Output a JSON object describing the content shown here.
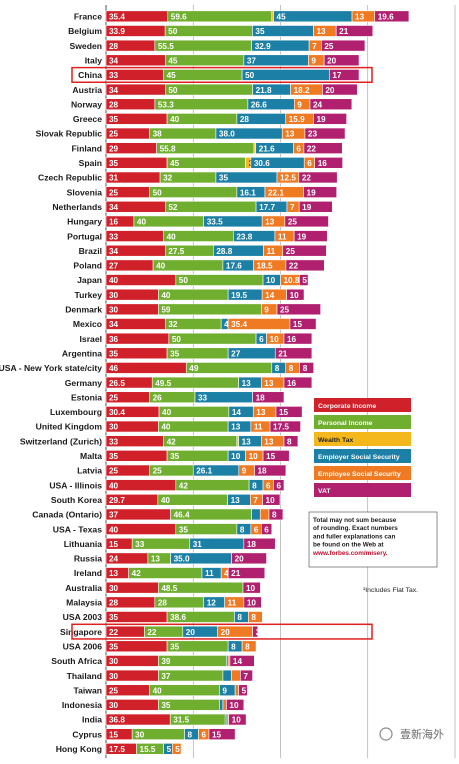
{
  "chart_data": {
    "type": "bar",
    "stacked": true,
    "orientation": "horizontal",
    "xlim": [
      0,
      200
    ],
    "xticks": [
      "0",
      "50",
      "100",
      "150",
      "200"
    ],
    "grid": true,
    "legend_position": "right",
    "highlighted_rows": [
      "China",
      "Singapore"
    ],
    "series": [
      {
        "name": "Corporate Income",
        "color": "#d0202a"
      },
      {
        "name": "Personal Income",
        "color": "#6fae2e"
      },
      {
        "name": "Wealth Tax",
        "color": "#f4b81c"
      },
      {
        "name": "Employer Social Security",
        "color": "#1c7fa6"
      },
      {
        "name": "Employee Social Security",
        "color": "#ef7a22"
      },
      {
        "name": "VAT",
        "color": "#b1206f"
      }
    ],
    "rows": [
      {
        "label": "France",
        "values": [
          35.4,
          59.6,
          1.0,
          45,
          13,
          19.6
        ],
        "labels": [
          "35.4",
          "59.6",
          "",
          "45",
          "13",
          "19.6"
        ]
      },
      {
        "label": "Belgium",
        "values": [
          33.9,
          50,
          0,
          35,
          13,
          21
        ],
        "labels": [
          "33.9",
          "50",
          "",
          "35",
          "13",
          "21"
        ]
      },
      {
        "label": "Sweden",
        "values": [
          28,
          55.5,
          0,
          32.9,
          7,
          25
        ],
        "labels": [
          "28",
          "55.5",
          "",
          "32.9",
          "7",
          "25"
        ]
      },
      {
        "label": "Italy",
        "values": [
          34,
          45,
          0,
          37,
          9,
          20
        ],
        "labels": [
          "34",
          "45",
          "",
          "37",
          "9",
          "20"
        ]
      },
      {
        "label": "China",
        "values": [
          33,
          45,
          0,
          50,
          0,
          17
        ],
        "labels": [
          "33",
          "45",
          "",
          "50",
          "",
          "17"
        ]
      },
      {
        "label": "Austria",
        "values": [
          34,
          50,
          0,
          21.8,
          18.2,
          20
        ],
        "labels": [
          "34",
          "50",
          "",
          "21.8",
          "18.2",
          "20"
        ]
      },
      {
        "label": "Norway",
        "values": [
          28,
          53.3,
          0,
          26.6,
          9,
          24
        ],
        "labels": [
          "28",
          "53.3",
          "",
          "26.6",
          "9",
          "24"
        ]
      },
      {
        "label": "Greece",
        "values": [
          35,
          40,
          0,
          28,
          15.9,
          19
        ],
        "labels": [
          "35",
          "40",
          "",
          "28",
          "15.9",
          "19"
        ]
      },
      {
        "label": "Slovak Republic",
        "values": [
          25,
          38,
          0,
          38,
          13,
          23
        ],
        "labels": [
          "25",
          "38",
          "",
          "38.0",
          "13",
          "23"
        ]
      },
      {
        "label": "Finland",
        "values": [
          29,
          55.8,
          1,
          21.6,
          6,
          22
        ],
        "labels": [
          "29",
          "55.8",
          "1",
          "21.6",
          "6",
          "22"
        ]
      },
      {
        "label": "Spain",
        "values": [
          35,
          45,
          3,
          30.6,
          6,
          16
        ],
        "labels": [
          "35",
          "45",
          "3",
          "30.6",
          "6",
          "16"
        ]
      },
      {
        "label": "Czech Republic",
        "values": [
          31,
          32,
          0,
          35,
          12.5,
          22
        ],
        "labels": [
          "31",
          "32",
          "",
          "35",
          "12.5",
          "22"
        ]
      },
      {
        "label": "Slovenia",
        "values": [
          25,
          50,
          0,
          16.1,
          22.1,
          19
        ],
        "labels": [
          "25",
          "50",
          "",
          "16.1",
          "22.1",
          "19"
        ]
      },
      {
        "label": "Netherlands",
        "values": [
          34,
          52,
          0,
          17.7,
          7,
          19
        ],
        "labels": [
          "34",
          "52",
          "",
          "17.7",
          "7",
          "19"
        ]
      },
      {
        "label": "Hungary",
        "values": [
          16,
          40,
          0,
          33.5,
          13,
          25
        ],
        "labels": [
          "16",
          "40",
          "",
          "33.5",
          "13",
          "25"
        ]
      },
      {
        "label": "Portugal",
        "values": [
          33,
          40,
          0,
          23.8,
          11,
          19
        ],
        "labels": [
          "33",
          "40",
          "",
          "23.8",
          "11",
          "19"
        ]
      },
      {
        "label": "Brazil",
        "values": [
          34,
          27.5,
          0,
          28.8,
          11,
          25
        ],
        "labels": [
          "34",
          "27.5",
          "",
          "28.8",
          "11",
          "25"
        ]
      },
      {
        "label": "Poland",
        "values": [
          27,
          40,
          0,
          17.6,
          18.5,
          22
        ],
        "labels": [
          "27",
          "40",
          "",
          "17.6",
          "18.5",
          "22"
        ]
      },
      {
        "label": "Japan",
        "values": [
          40,
          50,
          0,
          10,
          10.8,
          5
        ],
        "labels": [
          "40",
          "50",
          "",
          "10",
          "10.8",
          "5"
        ]
      },
      {
        "label": "Turkey",
        "values": [
          30,
          40,
          0,
          19.5,
          14,
          10
        ],
        "labels": [
          "30",
          "40",
          "",
          "19.5",
          "14",
          "10"
        ]
      },
      {
        "label": "Denmark",
        "values": [
          30,
          59,
          0,
          0,
          9,
          25
        ],
        "labels": [
          "30",
          "59",
          "",
          "",
          "9",
          "25"
        ]
      },
      {
        "label": "Mexico",
        "values": [
          34,
          32,
          0,
          4,
          35.4,
          15
        ],
        "labels": [
          "34",
          "32",
          "",
          "4",
          "35.4",
          "15"
        ]
      },
      {
        "label": "Israel",
        "values": [
          36,
          50,
          0,
          6,
          10,
          16
        ],
        "labels": [
          "36",
          "50",
          "",
          "6",
          "10",
          "16"
        ]
      },
      {
        "label": "Argentina",
        "values": [
          35,
          35,
          0,
          27,
          0,
          21
        ],
        "labels": [
          "35",
          "35",
          "",
          "27",
          "",
          "21"
        ]
      },
      {
        "label": "USA - New York state/city",
        "values": [
          46,
          49,
          0,
          8,
          8,
          8
        ],
        "labels": [
          "46",
          "49",
          "",
          "8",
          "8",
          "8"
        ]
      },
      {
        "label": "Germany",
        "values": [
          26.5,
          49.5,
          0,
          13,
          13,
          16
        ],
        "labels": [
          "26.5",
          "49.5",
          "",
          "13",
          "13",
          "16"
        ]
      },
      {
        "label": "Estonia",
        "values": [
          25,
          26,
          0,
          33,
          0,
          18
        ],
        "labels": [
          "25",
          "26",
          "",
          "33",
          "",
          "18"
        ]
      },
      {
        "label": "Luxembourg",
        "values": [
          30.4,
          40,
          0,
          14,
          13,
          15
        ],
        "labels": [
          "30.4",
          "40",
          "",
          "14",
          "13",
          "15"
        ]
      },
      {
        "label": "United Kingdom",
        "values": [
          30,
          40,
          0,
          13,
          11,
          17.5
        ],
        "labels": [
          "30",
          "40",
          "",
          "13",
          "11",
          "17.5"
        ]
      },
      {
        "label": "Switzerland (Zurich)",
        "values": [
          33,
          42,
          1,
          13,
          13,
          8
        ],
        "labels": [
          "33",
          "42",
          "1",
          "13",
          "13",
          "8"
        ]
      },
      {
        "label": "Malta",
        "values": [
          35,
          35,
          0,
          10,
          10,
          15
        ],
        "labels": [
          "35",
          "35",
          "",
          "10",
          "10",
          "15"
        ]
      },
      {
        "label": "Latvia",
        "values": [
          25,
          25,
          0,
          26.1,
          9,
          18
        ],
        "labels": [
          "25",
          "25",
          "",
          "26.1",
          "9",
          "18"
        ]
      },
      {
        "label": "USA - Illinois",
        "values": [
          40,
          42,
          0,
          8,
          6,
          6
        ],
        "labels": [
          "40",
          "42",
          "",
          "8",
          "6",
          "6"
        ]
      },
      {
        "label": "South Korea",
        "values": [
          29.7,
          40,
          0,
          13,
          7,
          10
        ],
        "labels": [
          "29.7",
          "40",
          "",
          "13",
          "7",
          "10"
        ]
      },
      {
        "label": "Canada (Ontario)",
        "values": [
          37,
          46.4,
          0,
          5,
          5,
          8
        ],
        "labels": [
          "37",
          "46.4",
          "",
          "",
          "",
          "8"
        ]
      },
      {
        "label": "USA - Texas",
        "values": [
          40,
          35,
          0,
          8,
          6,
          6
        ],
        "labels": [
          "40",
          "35",
          "",
          "8",
          "6",
          "6"
        ]
      },
      {
        "label": "Lithuania",
        "values": [
          15,
          33,
          0,
          31,
          0,
          18
        ],
        "labels": [
          "15",
          "33",
          "",
          "31",
          "",
          "18"
        ]
      },
      {
        "label": "Russia",
        "values": [
          24,
          13,
          0,
          35,
          0,
          20
        ],
        "labels": [
          "24",
          "13",
          "",
          "35.0",
          "",
          "20"
        ]
      },
      {
        "label": "Ireland",
        "values": [
          13,
          42,
          0,
          11,
          4,
          21
        ],
        "labels": [
          "13",
          "42",
          "",
          "11",
          "4",
          "21"
        ]
      },
      {
        "label": "Australia",
        "values": [
          30,
          48.5,
          0,
          0,
          0,
          10
        ],
        "labels": [
          "30",
          "48.5",
          "",
          "",
          "",
          "10"
        ]
      },
      {
        "label": "Malaysia",
        "values": [
          28,
          28,
          0,
          12,
          11,
          10
        ],
        "labels": [
          "28",
          "28",
          "",
          "12",
          "11",
          "10"
        ]
      },
      {
        "label": "USA 2003",
        "values": [
          35,
          38.6,
          0,
          8,
          8,
          0
        ],
        "labels": [
          "35",
          "38.6",
          "",
          "8",
          "8",
          ""
        ]
      },
      {
        "label": "Singapore",
        "values": [
          22,
          22,
          0,
          20,
          20,
          3
        ],
        "labels": [
          "22",
          "22",
          "",
          "20",
          "20",
          "3"
        ]
      },
      {
        "label": "USA 2006",
        "values": [
          35,
          35,
          0,
          8,
          8,
          0
        ],
        "labels": [
          "35",
          "35",
          "",
          "8",
          "8",
          ""
        ]
      },
      {
        "label": "South Africa",
        "values": [
          30,
          39,
          0,
          1,
          1,
          14
        ],
        "labels": [
          "30",
          "39",
          "",
          "",
          "",
          "14"
        ]
      },
      {
        "label": "Thailand",
        "values": [
          30,
          37,
          0,
          5,
          5,
          7
        ],
        "labels": [
          "30",
          "37",
          "",
          "",
          "",
          "7"
        ]
      },
      {
        "label": "Taiwan",
        "values": [
          25,
          40,
          0,
          9,
          2,
          5
        ],
        "labels": [
          "25",
          "40",
          "",
          "9",
          "",
          "5"
        ]
      },
      {
        "label": "Indonesia",
        "values": [
          30,
          35,
          0,
          2,
          2,
          10
        ],
        "labels": [
          "30",
          "35",
          "",
          "",
          "",
          "10"
        ]
      },
      {
        "label": "India",
        "values": [
          36.8,
          31.5,
          0,
          1,
          1,
          10
        ],
        "labels": [
          "36.8",
          "31.5",
          "",
          "",
          "",
          "10"
        ]
      },
      {
        "label": "Cyprus",
        "values": [
          15,
          30,
          0,
          8,
          6,
          15
        ],
        "labels": [
          "15",
          "30",
          "",
          "8",
          "6",
          "15"
        ]
      },
      {
        "label": "Hong Kong",
        "values": [
          17.5,
          15.5,
          0,
          5,
          5,
          0
        ],
        "labels": [
          "17.5",
          "15.5",
          "",
          "5",
          "5",
          ""
        ]
      }
    ],
    "note": "Total may not sum because of rounding. Exact numbers and fuller explanations can be found on the Web at",
    "note_link": "www.forbes.com/misery.",
    "footnote": "¹Includes Flat Tax.",
    "watermark": "壹新海外"
  }
}
